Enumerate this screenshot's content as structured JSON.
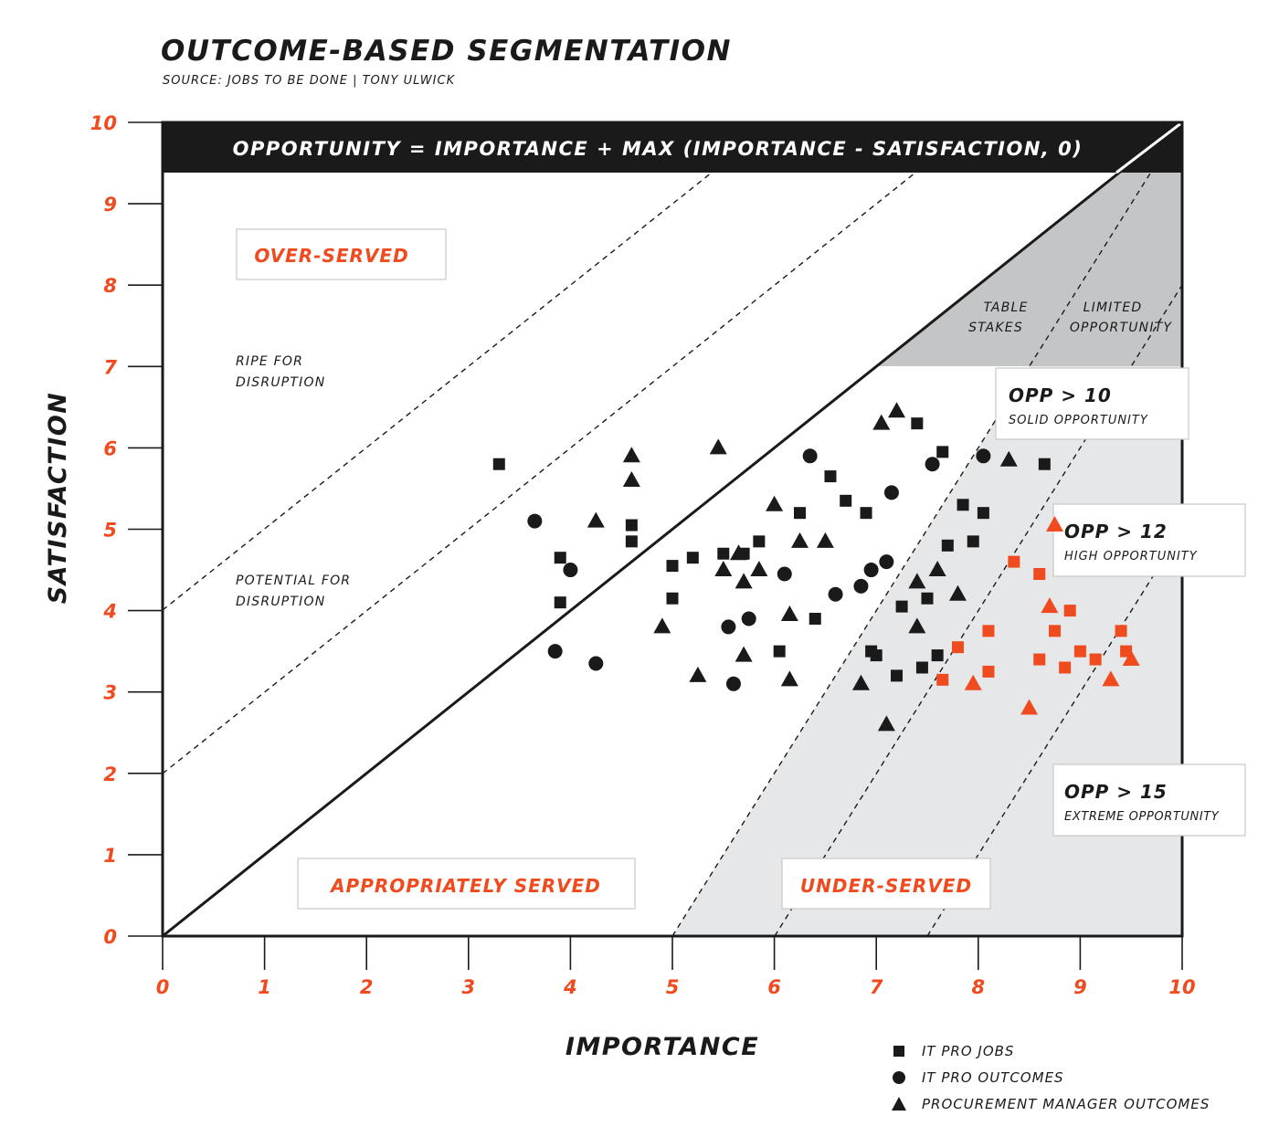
{
  "page": {
    "title": "OUTCOME-BASED SEGMENTATION",
    "subtitle": "SOURCE: JOBS TO BE DONE | TONY ULWICK"
  },
  "colors": {
    "accent": "#f04a1f",
    "ink": "#1a1a1a",
    "shade_light": "#e6e7e9",
    "shade_dark": "#c4c5c7"
  },
  "annotations": {
    "formula": "OPPORTUNITY = IMPORTANCE + MAX (IMPORTANCE - SATISFACTION, 0)",
    "over_served": "OVER-SERVED",
    "appropriately_served": "APPROPRIATELY SERVED",
    "under_served": "UNDER-SERVED",
    "ripe_line1": "RIPE FOR",
    "ripe_line2": "DISRUPTION",
    "potential_line1": "POTENTIAL FOR",
    "potential_line2": "DISRUPTION",
    "table_line1": "TABLE",
    "table_line2": "STAKES",
    "limited_line1": "LIMITED",
    "limited_line2": "OPPORTUNITY",
    "opp10_title": "OPP > 10",
    "opp10_sub": "SOLID OPPORTUNITY",
    "opp12_title": "OPP > 12",
    "opp12_sub": "HIGH OPPORTUNITY",
    "opp15_title": "OPP > 15",
    "opp15_sub": "EXTREME OPPORTUNITY"
  },
  "chart_data": {
    "type": "scatter",
    "xlabel": "IMPORTANCE",
    "ylabel": "SATISFACTION",
    "xlim": [
      0,
      10
    ],
    "ylim": [
      0,
      10
    ],
    "xticks": [
      "0",
      "1",
      "2",
      "3",
      "4",
      "5",
      "6",
      "7",
      "8",
      "9",
      "10"
    ],
    "yticks": [
      "0",
      "1",
      "2",
      "3",
      "4",
      "5",
      "6",
      "7",
      "8",
      "9",
      "10"
    ],
    "grid": false,
    "legend_position": "bottom-right",
    "series": [
      {
        "name": "IT PRO JOBS",
        "marker": "square",
        "points": [
          [
            3.3,
            5.8
          ],
          [
            3.9,
            4.65
          ],
          [
            3.9,
            4.1
          ],
          [
            4.6,
            5.05
          ],
          [
            4.6,
            4.85
          ],
          [
            5.0,
            4.55
          ],
          [
            5.0,
            4.15
          ],
          [
            5.2,
            4.65
          ],
          [
            5.5,
            4.7
          ],
          [
            5.7,
            4.7
          ],
          [
            5.85,
            4.85
          ],
          [
            6.05,
            3.5
          ],
          [
            6.25,
            5.2
          ],
          [
            6.4,
            3.9
          ],
          [
            6.55,
            5.65
          ],
          [
            6.7,
            5.35
          ],
          [
            6.9,
            5.2
          ],
          [
            6.95,
            3.5
          ],
          [
            7.0,
            3.45
          ],
          [
            7.2,
            3.2
          ],
          [
            7.25,
            4.05
          ],
          [
            7.4,
            6.3
          ],
          [
            7.45,
            3.3
          ],
          [
            7.5,
            4.15
          ],
          [
            7.6,
            3.45
          ],
          [
            7.65,
            5.95
          ],
          [
            7.7,
            4.8
          ],
          [
            7.85,
            5.3
          ],
          [
            7.95,
            4.85
          ],
          [
            8.05,
            5.2
          ],
          [
            8.65,
            5.8
          ],
          [
            7.65,
            3.15
          ],
          [
            7.8,
            3.55
          ],
          [
            8.1,
            3.75
          ],
          [
            8.1,
            3.25
          ],
          [
            8.35,
            4.6
          ],
          [
            8.6,
            4.45
          ],
          [
            8.6,
            3.4
          ],
          [
            8.75,
            3.75
          ],
          [
            8.85,
            3.3
          ],
          [
            8.9,
            4.0
          ],
          [
            9.0,
            3.5
          ],
          [
            9.15,
            3.4
          ],
          [
            9.4,
            3.75
          ],
          [
            9.45,
            3.5
          ]
        ],
        "highlighted": [
          31,
          32,
          33,
          34,
          35,
          36,
          37,
          38,
          39,
          40,
          41,
          42,
          43,
          44
        ]
      },
      {
        "name": "IT PRO OUTCOMES",
        "marker": "circle",
        "points": [
          [
            3.65,
            5.1
          ],
          [
            3.85,
            3.5
          ],
          [
            4.0,
            4.5
          ],
          [
            4.25,
            3.35
          ],
          [
            5.55,
            3.8
          ],
          [
            5.6,
            3.1
          ],
          [
            5.75,
            3.9
          ],
          [
            6.1,
            4.45
          ],
          [
            6.35,
            5.9
          ],
          [
            6.6,
            4.2
          ],
          [
            6.85,
            4.3
          ],
          [
            6.95,
            4.5
          ],
          [
            7.1,
            4.6
          ],
          [
            7.15,
            5.45
          ],
          [
            7.55,
            5.8
          ],
          [
            8.05,
            5.9
          ]
        ]
      },
      {
        "name": "PROCUREMENT MANAGER OUTCOMES",
        "marker": "triangle",
        "points": [
          [
            4.25,
            5.1
          ],
          [
            4.6,
            5.9
          ],
          [
            4.6,
            5.6
          ],
          [
            4.9,
            3.8
          ],
          [
            5.25,
            3.2
          ],
          [
            5.45,
            6.0
          ],
          [
            5.5,
            4.5
          ],
          [
            5.65,
            4.7
          ],
          [
            5.7,
            4.35
          ],
          [
            5.7,
            3.45
          ],
          [
            5.85,
            4.5
          ],
          [
            6.0,
            5.3
          ],
          [
            6.15,
            3.95
          ],
          [
            6.15,
            3.15
          ],
          [
            6.25,
            4.85
          ],
          [
            6.5,
            4.85
          ],
          [
            6.85,
            3.1
          ],
          [
            7.05,
            6.3
          ],
          [
            7.1,
            2.6
          ],
          [
            7.2,
            6.45
          ],
          [
            7.4,
            4.35
          ],
          [
            7.4,
            3.8
          ],
          [
            7.6,
            4.5
          ],
          [
            7.8,
            4.2
          ],
          [
            8.3,
            5.85
          ],
          [
            7.95,
            3.1
          ],
          [
            8.5,
            2.8
          ],
          [
            8.75,
            5.05
          ],
          [
            8.7,
            4.05
          ],
          [
            9.3,
            3.15
          ],
          [
            9.5,
            3.4
          ]
        ],
        "highlighted": [
          25,
          26,
          27,
          28,
          29,
          30
        ]
      }
    ]
  }
}
